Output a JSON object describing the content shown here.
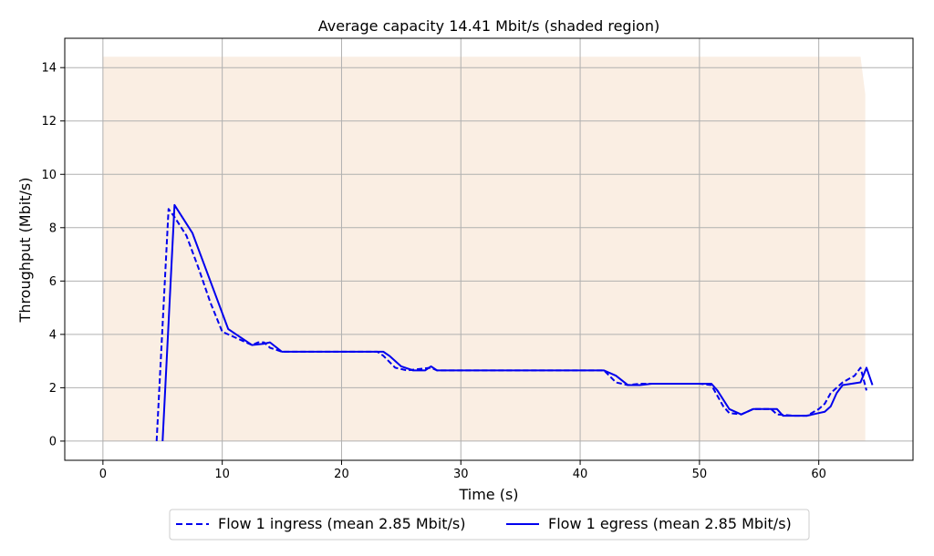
{
  "chart_data": {
    "type": "line",
    "title": "Average capacity 14.41 Mbit/s (shaded region)",
    "xlabel": "Time (s)",
    "ylabel": "Throughput (Mbit/s)",
    "xlim": [
      -3.2,
      67.9
    ],
    "ylim": [
      -0.72,
      15.1
    ],
    "xticks": [
      0,
      10,
      20,
      30,
      40,
      50,
      60
    ],
    "yticks": [
      0,
      2,
      4,
      6,
      8,
      10,
      12,
      14
    ],
    "grid": true,
    "legend_position": "bottom-center",
    "capacity": {
      "color": "#faeee3",
      "points": [
        [
          0,
          14.41
        ],
        [
          63.5,
          14.41
        ],
        [
          63.9,
          13.0
        ],
        [
          63.9,
          0
        ],
        [
          0,
          0
        ]
      ]
    },
    "series": [
      {
        "name": "Flow 1 ingress (mean 2.85 Mbit/s)",
        "style": "dashed",
        "color": "#0000ee",
        "x": [
          4.5,
          5.5,
          6.0,
          7.0,
          8.0,
          9.0,
          10.0,
          10.5,
          11.5,
          12.5,
          13.0,
          13.5,
          14.0,
          15.0,
          20.0,
          23.0,
          23.5,
          24.5,
          25.5,
          26.5,
          27.5,
          28.0,
          35.0,
          42.0,
          43.0,
          44.0,
          45.0,
          46.0,
          50.0,
          51.0,
          52.0,
          52.5,
          53.5,
          54.5,
          56.0,
          56.5,
          58.0,
          59.0,
          60.0,
          60.5,
          61.0,
          62.0,
          63.0,
          63.5,
          64.0
        ],
        "values": [
          0.0,
          8.7,
          8.4,
          7.7,
          6.5,
          5.2,
          4.1,
          4.0,
          3.8,
          3.6,
          3.7,
          3.7,
          3.5,
          3.35,
          3.35,
          3.35,
          3.2,
          2.75,
          2.65,
          2.7,
          2.75,
          2.65,
          2.65,
          2.65,
          2.2,
          2.1,
          2.15,
          2.15,
          2.15,
          2.1,
          1.3,
          1.05,
          1.0,
          1.2,
          1.2,
          1.0,
          0.95,
          0.95,
          1.2,
          1.4,
          1.8,
          2.2,
          2.45,
          2.75,
          1.9
        ]
      },
      {
        "name": "Flow 1 egress (mean 2.85 Mbit/s)",
        "style": "solid",
        "color": "#0000ee",
        "x": [
          5.0,
          6.0,
          7.5,
          9.0,
          10.5,
          11.5,
          12.5,
          13.5,
          14.0,
          15.0,
          20.0,
          23.5,
          24.0,
          25.0,
          26.0,
          27.0,
          27.5,
          28.0,
          35.0,
          42.0,
          43.0,
          44.0,
          45.0,
          46.0,
          50.0,
          51.0,
          51.5,
          52.5,
          53.5,
          54.5,
          55.5,
          56.5,
          57.0,
          58.0,
          59.0,
          60.0,
          60.5,
          61.0,
          61.5,
          62.0,
          63.5,
          64.0,
          64.5
        ],
        "values": [
          0.0,
          8.85,
          7.8,
          6.0,
          4.2,
          3.9,
          3.6,
          3.65,
          3.7,
          3.35,
          3.35,
          3.35,
          3.2,
          2.8,
          2.65,
          2.65,
          2.8,
          2.65,
          2.65,
          2.65,
          2.45,
          2.1,
          2.1,
          2.15,
          2.15,
          2.15,
          1.9,
          1.2,
          1.0,
          1.2,
          1.2,
          1.2,
          0.95,
          0.95,
          0.95,
          1.05,
          1.1,
          1.3,
          1.8,
          2.1,
          2.2,
          2.75,
          2.1
        ]
      }
    ]
  }
}
